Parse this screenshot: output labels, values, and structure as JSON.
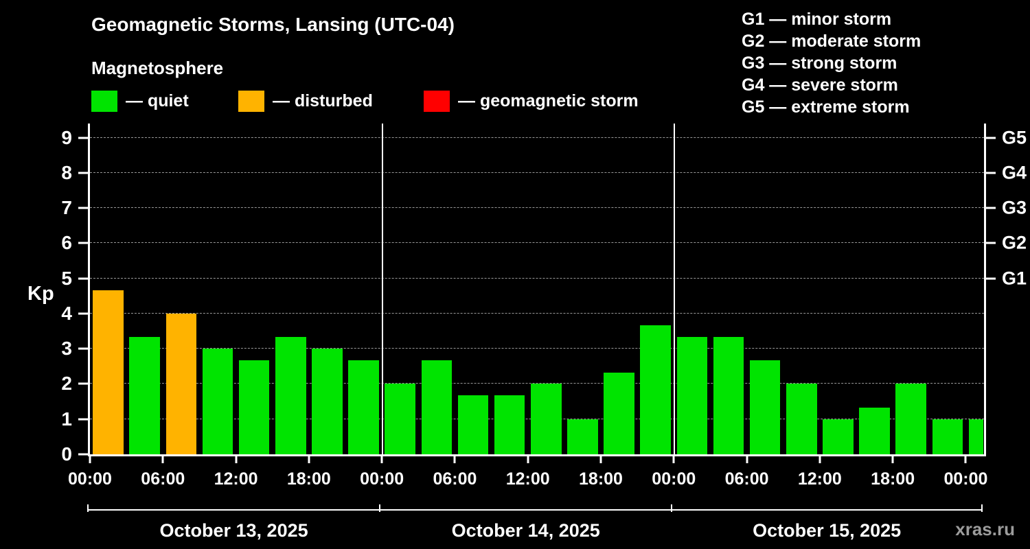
{
  "title": "Geomagnetic Storms, Lansing (UTC-04)",
  "subtitle": "Magnetosphere",
  "colors": {
    "quiet": "#00e400",
    "disturbed": "#ffb300",
    "storm": "#ff0000",
    "axis": "#ffffff",
    "grid": "#999999"
  },
  "legend": {
    "items": [
      {
        "status": "quiet",
        "label": "— quiet"
      },
      {
        "status": "disturbed",
        "label": "— disturbed"
      },
      {
        "status": "storm",
        "label": "— geomagnetic storm"
      }
    ]
  },
  "storm_legend": [
    "G1 — minor storm",
    "G2 — moderate storm",
    "G3 — strong storm",
    "G4 — severe storm",
    "G5 — extreme storm"
  ],
  "watermark": "xras.ru",
  "chart_data": {
    "type": "bar",
    "title": "Geomagnetic Storms, Lansing (UTC-04)",
    "ylabel": "Kp",
    "ylim": [
      0,
      9.4
    ],
    "yticks": [
      0,
      1,
      2,
      3,
      4,
      5,
      6,
      7,
      8,
      9
    ],
    "grid": "dashed horizontal at each integer Kp",
    "g_levels": [
      {
        "label": "G1",
        "kp": 5
      },
      {
        "label": "G2",
        "kp": 6
      },
      {
        "label": "G3",
        "kp": 7
      },
      {
        "label": "G4",
        "kp": 8
      },
      {
        "label": "G5",
        "kp": 9
      }
    ],
    "x_tick_labels": [
      "00:00",
      "06:00",
      "12:00",
      "18:00",
      "00:00",
      "06:00",
      "12:00",
      "18:00",
      "00:00",
      "06:00",
      "12:00",
      "18:00",
      "00:00"
    ],
    "interval_hours": 3,
    "days": [
      {
        "label": "October 13, 2025",
        "kp": [
          4.67,
          3.33,
          4.0,
          3.0,
          2.67,
          3.33,
          3.0,
          2.67
        ],
        "status": [
          "disturbed",
          "quiet",
          "disturbed",
          "quiet",
          "quiet",
          "quiet",
          "quiet",
          "quiet"
        ]
      },
      {
        "label": "October 14, 2025",
        "kp": [
          2.0,
          2.67,
          1.67,
          1.67,
          2.0,
          1.0,
          2.33,
          3.67
        ],
        "status": [
          "quiet",
          "quiet",
          "quiet",
          "quiet",
          "quiet",
          "quiet",
          "quiet",
          "quiet"
        ]
      },
      {
        "label": "October 15, 2025",
        "kp": [
          3.33,
          3.33,
          2.67,
          2.0,
          1.0,
          1.33,
          2.0,
          1.0
        ],
        "status": [
          "quiet",
          "quiet",
          "quiet",
          "quiet",
          "quiet",
          "quiet",
          "quiet",
          "quiet"
        ]
      }
    ],
    "partial_next": {
      "kp": 1.0,
      "status": "quiet"
    }
  }
}
